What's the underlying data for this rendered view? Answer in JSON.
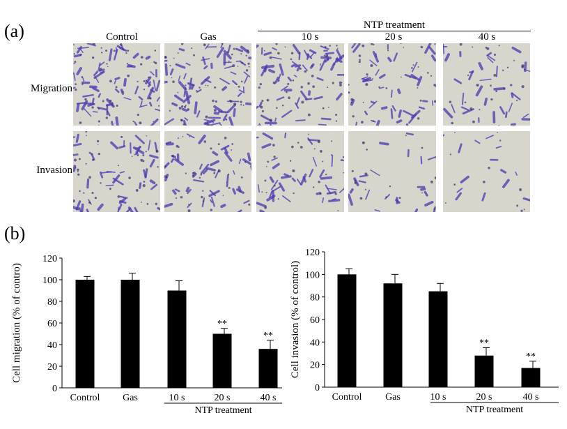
{
  "panel_a": {
    "label": "(a)",
    "ntp_header": "NTP treatment",
    "columns": [
      "Control",
      "Gas",
      "10 s",
      "20 s",
      "40 s"
    ],
    "rows": [
      "Migration",
      "Invasion"
    ],
    "colors": {
      "stain": "#4a3ab0",
      "background": "#d8d6cc"
    }
  },
  "panel_b_label": "(b)",
  "chart_data": [
    {
      "type": "bar",
      "ylabel": "Cell migration (% of contro)",
      "categories": [
        "Control",
        "Gas",
        "10 s",
        "20 s",
        "40 s"
      ],
      "values": [
        100,
        100,
        90,
        50,
        36
      ],
      "errors": [
        3,
        6,
        9,
        5,
        8
      ],
      "significance": [
        "",
        "",
        "",
        "**",
        "**"
      ],
      "group_label": "NTP treatment",
      "yticks": [
        0,
        20,
        40,
        60,
        80,
        100,
        120
      ],
      "ylim": [
        0,
        120
      ],
      "bar_color": "#000000"
    },
    {
      "type": "bar",
      "ylabel": "Cell invasion (% of control)",
      "categories": [
        "Control",
        "Gas",
        "10 s",
        "20 s",
        "40 s"
      ],
      "values": [
        100,
        92,
        85,
        28,
        17
      ],
      "errors": [
        5,
        8,
        7,
        7,
        6
      ],
      "significance": [
        "",
        "",
        "",
        "**",
        "**"
      ],
      "group_label": "NTP treatment",
      "yticks": [
        0,
        20,
        40,
        60,
        80,
        100,
        120
      ],
      "ylim": [
        0,
        120
      ],
      "bar_color": "#000000"
    }
  ]
}
